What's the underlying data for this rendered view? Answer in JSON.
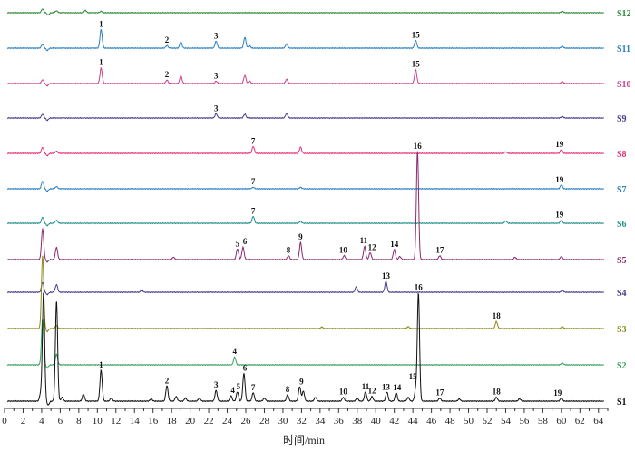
{
  "chart_data": {
    "type": "line",
    "title": "",
    "xlabel": "时间/min",
    "ylabel": "",
    "xlim": [
      0,
      65
    ],
    "xticks": [
      0,
      2,
      4,
      6,
      8,
      10,
      12,
      14,
      16,
      18,
      20,
      22,
      24,
      26,
      28,
      30,
      32,
      34,
      36,
      38,
      40,
      42,
      44,
      46,
      48,
      50,
      52,
      54,
      56,
      58,
      60,
      62,
      64
    ],
    "grid": false,
    "series": [
      {
        "name": "S12",
        "color": "#2e8b3a",
        "peaks": [
          [
            4.1,
            0.5
          ],
          [
            4.7,
            -0.3
          ],
          [
            5.6,
            0.25
          ],
          [
            8.7,
            0.3
          ],
          [
            10.4,
            0.18
          ],
          [
            60.1,
            0.2
          ]
        ],
        "labels": []
      },
      {
        "name": "S11",
        "color": "#2a7fc0",
        "peaks": [
          [
            4.1,
            0.5
          ],
          [
            4.6,
            -0.3
          ],
          [
            10.4,
            2.4
          ],
          [
            17.5,
            0.35
          ],
          [
            19.0,
            0.8
          ],
          [
            22.8,
            0.9
          ],
          [
            25.9,
            1.4
          ],
          [
            26.4,
            0.3
          ],
          [
            30.4,
            0.55
          ],
          [
            44.3,
            1.0
          ],
          [
            60.1,
            0.25
          ]
        ],
        "labels": [
          {
            "text": "1",
            "x": 10.4
          },
          {
            "text": "2",
            "x": 17.5
          },
          {
            "text": "3",
            "x": 22.8
          },
          {
            "text": "15",
            "x": 44.3
          }
        ]
      },
      {
        "name": "S10",
        "color": "#c8408c",
        "peaks": [
          [
            4.1,
            0.5
          ],
          [
            4.6,
            -0.3
          ],
          [
            10.4,
            2.0
          ],
          [
            17.5,
            0.45
          ],
          [
            19.0,
            1.0
          ],
          [
            22.8,
            0.3
          ],
          [
            25.9,
            1.05
          ],
          [
            26.4,
            0.3
          ],
          [
            30.4,
            0.55
          ],
          [
            44.3,
            1.8
          ],
          [
            60.1,
            0.25
          ]
        ],
        "labels": [
          {
            "text": "1",
            "x": 10.4
          },
          {
            "text": "2",
            "x": 17.5
          },
          {
            "text": "3",
            "x": 22.8
          },
          {
            "text": "15",
            "x": 44.3
          }
        ]
      },
      {
        "name": "S9",
        "color": "#4b3a8c",
        "peaks": [
          [
            4.1,
            0.5
          ],
          [
            4.6,
            -0.3
          ],
          [
            22.8,
            0.55
          ],
          [
            25.9,
            0.5
          ],
          [
            30.4,
            0.6
          ],
          [
            60.1,
            0.2
          ]
        ],
        "labels": [
          {
            "text": "3",
            "x": 22.8
          }
        ]
      },
      {
        "name": "S8",
        "color": "#e8307a",
        "peaks": [
          [
            4.1,
            0.8
          ],
          [
            4.6,
            -0.3
          ],
          [
            5.6,
            0.3
          ],
          [
            26.8,
            0.9
          ],
          [
            31.9,
            0.8
          ],
          [
            54.0,
            0.2
          ],
          [
            60.0,
            0.5
          ]
        ],
        "labels": [
          {
            "text": "7",
            "x": 26.8
          },
          {
            "text": "19",
            "x": 59.8
          }
        ]
      },
      {
        "name": "S7",
        "color": "#2a7fc0",
        "peaks": [
          [
            4.1,
            1.0
          ],
          [
            4.6,
            -0.3
          ],
          [
            5.6,
            0.3
          ],
          [
            26.8,
            0.2
          ],
          [
            31.9,
            0.2
          ],
          [
            60.0,
            0.5
          ]
        ],
        "labels": [
          {
            "text": "7",
            "x": 26.8
          },
          {
            "text": "19",
            "x": 59.8
          }
        ]
      },
      {
        "name": "S6",
        "color": "#20908a",
        "peaks": [
          [
            4.1,
            0.8
          ],
          [
            4.6,
            -0.3
          ],
          [
            5.6,
            0.4
          ],
          [
            26.8,
            0.9
          ],
          [
            31.9,
            0.25
          ],
          [
            54.0,
            0.3
          ],
          [
            60.0,
            0.4
          ]
        ],
        "labels": [
          {
            "text": "7",
            "x": 26.8
          },
          {
            "text": "19",
            "x": 59.8
          }
        ]
      },
      {
        "name": "S5",
        "color": "#8b2a6e",
        "peaks": [
          [
            4.1,
            4.0
          ],
          [
            4.6,
            -0.3
          ],
          [
            5.6,
            1.6
          ],
          [
            18.2,
            0.3
          ],
          [
            25.1,
            1.4
          ],
          [
            25.7,
            1.6
          ],
          [
            30.6,
            0.5
          ],
          [
            31.9,
            2.2
          ],
          [
            36.6,
            0.5
          ],
          [
            38.8,
            1.7
          ],
          [
            39.4,
            0.9
          ],
          [
            42.0,
            1.3
          ],
          [
            42.6,
            0.4
          ],
          [
            44.5,
            14.0
          ],
          [
            46.9,
            0.5
          ],
          [
            55.0,
            0.3
          ],
          [
            60.0,
            0.4
          ]
        ],
        "labels": [
          {
            "text": "5",
            "x": 25.1
          },
          {
            "text": "6",
            "x": 25.9
          },
          {
            "text": "8",
            "x": 30.6
          },
          {
            "text": "9",
            "x": 31.9
          },
          {
            "text": "10",
            "x": 36.5
          },
          {
            "text": "11",
            "x": 38.7
          },
          {
            "text": "12",
            "x": 39.6
          },
          {
            "text": "14",
            "x": 42.0
          },
          {
            "text": "16",
            "x": 44.5
          },
          {
            "text": "17",
            "x": 46.9
          }
        ]
      },
      {
        "name": "S4",
        "color": "#4b3a8c",
        "peaks": [
          [
            4.1,
            1.3
          ],
          [
            4.6,
            -0.3
          ],
          [
            5.6,
            1.0
          ],
          [
            14.8,
            0.3
          ],
          [
            37.9,
            0.7
          ],
          [
            41.1,
            1.4
          ],
          [
            60.1,
            0.25
          ]
        ],
        "labels": [
          {
            "text": "13",
            "x": 41.1
          }
        ]
      },
      {
        "name": "S3",
        "color": "#8a8a18",
        "peaks": [
          [
            4.1,
            9.5
          ],
          [
            4.6,
            -0.4
          ],
          [
            5.6,
            0.4
          ],
          [
            34.2,
            0.2
          ],
          [
            43.5,
            0.25
          ],
          [
            53.0,
            0.9
          ],
          [
            60.1,
            0.25
          ]
        ],
        "labels": [
          {
            "text": "18",
            "x": 53.0
          }
        ]
      },
      {
        "name": "S2",
        "color": "#3aa060",
        "peaks": [
          [
            4.1,
            6.0
          ],
          [
            4.6,
            -0.4
          ],
          [
            5.6,
            1.4
          ],
          [
            24.8,
            1.0
          ],
          [
            60.1,
            0.25
          ]
        ],
        "labels": [
          {
            "text": "4",
            "x": 24.8
          }
        ]
      },
      {
        "name": "S1",
        "color": "#111111",
        "peaks": [
          [
            3.9,
            1.0
          ],
          [
            4.2,
            14.0
          ],
          [
            4.7,
            -0.5
          ],
          [
            5.6,
            13.0
          ],
          [
            6.2,
            0.5
          ],
          [
            8.5,
            0.9
          ],
          [
            10.4,
            4.0
          ],
          [
            11.5,
            0.4
          ],
          [
            15.8,
            0.3
          ],
          [
            17.5,
            2.0
          ],
          [
            18.5,
            0.6
          ],
          [
            19.5,
            0.4
          ],
          [
            21.0,
            0.4
          ],
          [
            22.8,
            1.4
          ],
          [
            24.4,
            0.7
          ],
          [
            25.1,
            1.2
          ],
          [
            25.8,
            3.6
          ],
          [
            26.8,
            1.1
          ],
          [
            28.0,
            0.4
          ],
          [
            30.5,
            0.8
          ],
          [
            31.8,
            1.9
          ],
          [
            32.2,
            1.3
          ],
          [
            33.5,
            0.5
          ],
          [
            36.5,
            0.5
          ],
          [
            38.0,
            0.4
          ],
          [
            38.9,
            1.2
          ],
          [
            39.6,
            0.6
          ],
          [
            41.2,
            1.2
          ],
          [
            42.2,
            1.1
          ],
          [
            43.5,
            0.5
          ],
          [
            44.3,
            1.4
          ],
          [
            44.6,
            14.0
          ],
          [
            46.9,
            0.4
          ],
          [
            49.0,
            0.3
          ],
          [
            53.0,
            0.5
          ],
          [
            55.5,
            0.3
          ],
          [
            60.0,
            0.4
          ]
        ],
        "labels": [
          {
            "text": "1",
            "x": 10.4
          },
          {
            "text": "2",
            "x": 17.5
          },
          {
            "text": "3",
            "x": 22.8
          },
          {
            "text": "4",
            "x": 24.6
          },
          {
            "text": "5",
            "x": 25.2
          },
          {
            "text": "6",
            "x": 25.9
          },
          {
            "text": "7",
            "x": 26.8
          },
          {
            "text": "8",
            "x": 30.5
          },
          {
            "text": "9",
            "x": 32.0
          },
          {
            "text": "10",
            "x": 36.5
          },
          {
            "text": "11",
            "x": 38.9
          },
          {
            "text": "12",
            "x": 39.6
          },
          {
            "text": "13",
            "x": 41.1
          },
          {
            "text": "14",
            "x": 42.3
          },
          {
            "text": "15",
            "x": 44.0
          },
          {
            "text": "16",
            "x": 44.6
          },
          {
            "text": "17",
            "x": 46.9
          },
          {
            "text": "18",
            "x": 53.0
          },
          {
            "text": "19",
            "x": 59.6
          }
        ]
      }
    ]
  }
}
